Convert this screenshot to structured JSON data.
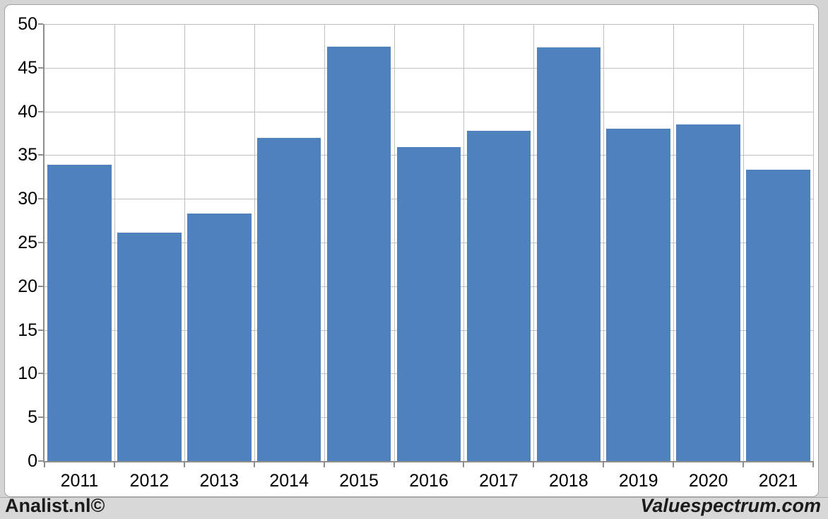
{
  "footer": {
    "left_text": "Analist.nl©",
    "right_text": "Valuespectrum.com"
  },
  "chart_data": {
    "type": "bar",
    "title": "",
    "xlabel": "",
    "ylabel": "",
    "categories": [
      "2011",
      "2012",
      "2013",
      "2014",
      "2015",
      "2016",
      "2017",
      "2018",
      "2019",
      "2020",
      "2021"
    ],
    "values": [
      33.9,
      26.1,
      28.3,
      37.0,
      47.4,
      35.9,
      37.8,
      47.3,
      38.0,
      38.5,
      33.3
    ],
    "ylim": [
      0,
      50
    ],
    "ytick_interval": 5,
    "ytick_labels": [
      "0",
      "5",
      "10",
      "15",
      "20",
      "25",
      "30",
      "35",
      "40",
      "45",
      "50"
    ],
    "grid": true,
    "legend": null,
    "bar_color": "#4F81BD",
    "gridline_color": "#c0c0c0",
    "axis_color": "#8e8e8e",
    "plot_background": "#ffffff",
    "page_background": "#d4d4d4",
    "footer_background": "#d8d8d8"
  }
}
